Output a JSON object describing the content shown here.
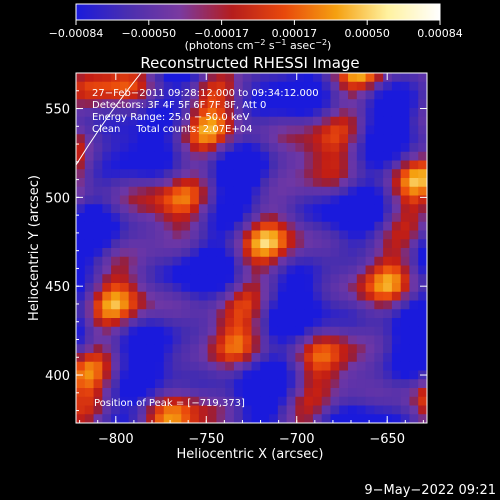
{
  "chart_data": {
    "type": "heatmap",
    "title": "Reconstructed RHESSI Image",
    "xlabel": "Heliocentric X (arcsec)",
    "ylabel": "Heliocentric Y (arcsec)",
    "xlim": [
      -822,
      -628
    ],
    "ylim": [
      373,
      570
    ],
    "x_ticks": [
      -800,
      -750,
      -700,
      -650
    ],
    "x_tick_labels": [
      "−800",
      "−750",
      "−700",
      "−650"
    ],
    "y_ticks": [
      400,
      450,
      500,
      550
    ],
    "y_tick_labels": [
      "400",
      "450",
      "500",
      "550"
    ],
    "colorbar": {
      "range": [
        -0.00084,
        0.00084
      ],
      "tick_labels": [
        "−0.00084",
        "−0.00050",
        "−0.00017",
        "0.00017",
        "0.00050",
        "0.00084"
      ],
      "unit_label_parts": [
        "(photons cm",
        "−2",
        " s",
        "−1",
        " asec",
        "−2",
        ")"
      ],
      "colors": [
        "#1a1adc",
        "#4a2fb0",
        "#7a3aa0",
        "#b51d1d",
        "#e8480c",
        "#f5a010",
        "#fff2a0",
        "#ffffff"
      ]
    },
    "annotations": {
      "time_range": "27−Feb−2011 09:28:12.000 to 09:34:12.000",
      "detectors": "Detectors: 3F 4F 5F 6F 7F 8F, Att 0",
      "energy_range": "Energy Range: 25.0 − 50.0 keV",
      "method_counts": "Clean     Total counts: 2.07E+04",
      "peak": "Position of Peak = [−719,373]"
    },
    "peak_position": [
      -719,
      373
    ],
    "limb_arc": true
  },
  "footer": {
    "timestamp": "9−May−2022 09:21"
  }
}
